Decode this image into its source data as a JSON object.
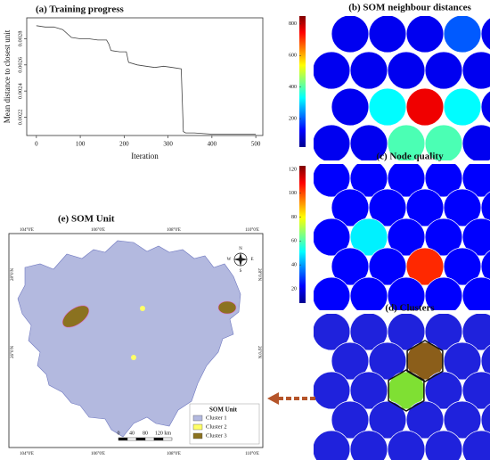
{
  "chart_data": [
    {
      "type": "line",
      "title": "(a) Training progress",
      "x_label": "Iteration",
      "y_label": "Mean distance to closest unit",
      "x": [
        0,
        20,
        40,
        60,
        80,
        100,
        120,
        140,
        160,
        165,
        170,
        190,
        205,
        210,
        230,
        250,
        270,
        290,
        310,
        330,
        335,
        340,
        360,
        400,
        450,
        500
      ],
      "values": [
        0.0029,
        0.00289,
        0.00289,
        0.00287,
        0.00281,
        0.0028,
        0.0028,
        0.00279,
        0.00279,
        0.00276,
        0.00271,
        0.0027,
        0.0027,
        0.00262,
        0.0026,
        0.00259,
        0.00258,
        0.00259,
        0.00258,
        0.00257,
        0.00209,
        0.00208,
        0.00208,
        0.00207,
        0.00207,
        0.00207
      ],
      "color": "#444444",
      "xlim": [
        -22,
        516
      ],
      "ylim": [
        0.00206,
        0.00296
      ],
      "xticks": [
        0,
        100,
        200,
        300,
        400,
        500
      ],
      "yticks": [
        0.0022,
        0.0024,
        0.0026,
        0.0028
      ]
    },
    {
      "type": "som",
      "title": "(b) SOM neighbour distances",
      "values": [
        [
          20,
          20,
          20,
          130,
          20
        ],
        [
          20,
          20,
          20,
          20,
          20
        ],
        [
          20,
          300,
          850,
          300,
          20
        ],
        [
          20,
          20,
          380,
          380,
          20
        ]
      ],
      "clim": [
        20,
        850
      ],
      "cticks": [
        200,
        400,
        600,
        800
      ],
      "colormap": "jet"
    },
    {
      "type": "som",
      "title": "(c) Node quality",
      "values": [
        [
          10,
          10,
          10,
          10,
          10
        ],
        [
          10,
          10,
          10,
          10,
          10
        ],
        [
          10,
          45,
          10,
          10,
          10
        ],
        [
          10,
          10,
          115,
          10,
          10
        ],
        [
          10,
          10,
          10,
          10,
          10
        ]
      ],
      "clim": [
        8,
        123
      ],
      "cticks": [
        20,
        40,
        60,
        80,
        100,
        120
      ],
      "colormap": "jet"
    },
    {
      "type": "som_clusters",
      "title": "(d) Clusters",
      "values": [
        [
          1,
          1,
          1,
          1,
          1
        ],
        [
          1,
          1,
          3,
          1,
          1
        ],
        [
          1,
          1,
          2,
          1,
          1
        ],
        [
          1,
          1,
          1,
          1,
          1
        ],
        [
          1,
          1,
          1,
          1,
          1
        ]
      ],
      "cluster_colors": [
        "#1f22dc",
        "#7fe033",
        "#8b5e1a"
      ]
    },
    {
      "type": "map",
      "title": "(e) SOM Unit",
      "legend_title": "SOM Unit",
      "legend": [
        {
          "name": "Cluster 1",
          "color": "#b3b9df"
        },
        {
          "name": "Cluster 2",
          "color": "#ffff66"
        },
        {
          "name": "Cluster 3",
          "color": "#8b7220"
        }
      ],
      "lon_labels": [
        "104°0'E",
        "106°0'E",
        "108°0'E",
        "110°0'E"
      ],
      "lat_labels": [
        "28°0'N",
        "26°0'N"
      ],
      "scale_labels": [
        "0",
        "40",
        "80",
        "120 km"
      ],
      "compass": [
        "N",
        "E",
        "S",
        "W"
      ]
    }
  ]
}
